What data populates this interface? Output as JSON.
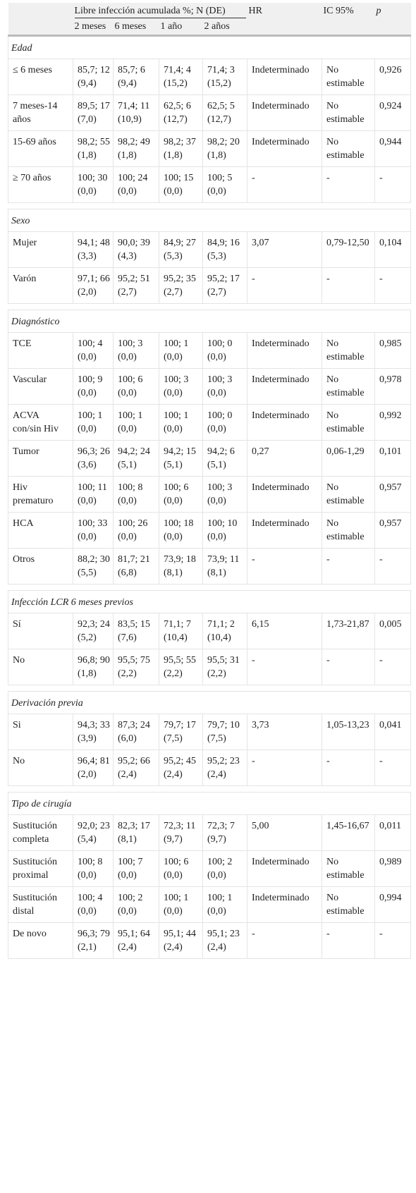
{
  "header": {
    "row1": {
      "group": "Libre infección acumulada %; N (DE)",
      "hr": "HR",
      "ic": "IC 95%",
      "p": "p"
    },
    "row2": [
      "2 meses",
      "6 meses",
      "1 año",
      "2 años"
    ]
  },
  "sections": [
    {
      "title": "Edad",
      "rows": [
        [
          "≤ 6 meses",
          "85,7; 12 (9,4)",
          "85,7; 6 (9,4)",
          "71,4; 4 (15,2)",
          "71,4; 3 (15,2)",
          "Indeterminado",
          "No estimable",
          "0,926"
        ],
        [
          "7 meses-14 años",
          "89,5; 17 (7,0)",
          "71,4; 11 (10,9)",
          "62,5; 6 (12,7)",
          "62,5; 5 (12,7)",
          "Indeterminado",
          "No estimable",
          "0,924"
        ],
        [
          "15-69 años",
          "98,2; 55 (1,8)",
          "98,2; 49 (1,8)",
          "98,2; 37 (1,8)",
          "98,2; 20 (1,8)",
          "Indeterminado",
          "No estimable",
          "0,944"
        ],
        [
          "≥ 70 años",
          "100; 30 (0,0)",
          "100; 24 (0,0)",
          "100; 15 (0,0)",
          "100; 5 (0,0)",
          "-",
          "-",
          "-"
        ]
      ]
    },
    {
      "title": "Sexo",
      "rows": [
        [
          "Mujer",
          "94,1; 48 (3,3)",
          "90,0; 39 (4,3)",
          "84,9; 27 (5,3)",
          "84,9; 16 (5,3)",
          "3,07",
          "0,79-12,50",
          "0,104"
        ],
        [
          "Varón",
          "97,1; 66 (2,0)",
          "95,2; 51 (2,7)",
          "95,2; 35 (2,7)",
          "95,2; 17 (2,7)",
          "-",
          "-",
          "-"
        ]
      ]
    },
    {
      "title": "Diagnóstico",
      "rows": [
        [
          "TCE",
          "100; 4 (0,0)",
          "100; 3 (0,0)",
          "100; 1 (0,0)",
          "100; 0 (0,0)",
          "Indeterminado",
          "No estimable",
          "0,985"
        ],
        [
          "Vascular",
          "100; 9 (0,0)",
          "100; 6 (0,0)",
          "100; 3 (0,0)",
          "100; 3 (0,0)",
          "Indeterminado",
          "No estimable",
          "0,978"
        ],
        [
          "ACVA con/sin Hiv",
          "100; 1 (0,0)",
          "100; 1 (0,0)",
          "100; 1 (0,0)",
          "100; 0 (0,0)",
          "Indeterminado",
          "No estimable",
          "0,992"
        ],
        [
          "Tumor",
          "96,3; 26 (3,6)",
          "94,2; 24 (5,1)",
          "94,2; 15 (5,1)",
          "94,2; 6 (5,1)",
          "0,27",
          "0,06-1,29",
          "0,101"
        ],
        [
          "Hiv prematuro",
          "100; 11 (0,0)",
          "100; 8 (0,0)",
          "100; 6 (0,0)",
          "100; 3 (0,0)",
          "Indeterminado",
          "No estimable",
          "0,957"
        ],
        [
          "HCA",
          "100; 33 (0,0)",
          "100; 26 (0,0)",
          "100; 18 (0,0)",
          "100; 10 (0,0)",
          "Indeterminado",
          "No estimable",
          "0,957"
        ],
        [
          "Otros",
          "88,2; 30 (5,5)",
          "81,7; 21 (6,8)",
          "73,9; 18 (8,1)",
          "73,9; 11 (8,1)",
          "-",
          "-",
          "-"
        ]
      ]
    },
    {
      "title": "Infección LCR 6 meses previos",
      "rows": [
        [
          "Sí",
          "92,3; 24 (5,2)",
          "83,5; 15 (7,6)",
          "71,1; 7 (10,4)",
          "71,1; 2 (10,4)",
          "6,15",
          "1,73-21,87",
          "0,005"
        ],
        [
          "No",
          "96,8; 90 (1,8)",
          "95,5; 75 (2,2)",
          "95,5; 55 (2,2)",
          "95,5; 31 (2,2)",
          "-",
          "-",
          "-"
        ]
      ]
    },
    {
      "title": "Derivación previa",
      "rows": [
        [
          "Si",
          "94,3; 33 (3,9)",
          "87,3; 24 (6,0)",
          "79,7; 17 (7,5)",
          "79,7; 10 (7,5)",
          "3,73",
          "1,05-13,23",
          "0,041"
        ],
        [
          "No",
          "96,4; 81 (2,0)",
          "95,2; 66 (2,4)",
          "95,2; 45 (2,4)",
          "95,2; 23 (2,4)",
          "-",
          "-",
          "-"
        ]
      ]
    },
    {
      "title": "Tipo de cirugía",
      "rows": [
        [
          "Sustitución completa",
          "92,0; 23 (5,4)",
          "82,3; 17 (8,1)",
          "72,3; 11 (9,7)",
          "72,3; 7 (9,7)",
          "5,00",
          "1,45-16,67",
          "0,011"
        ],
        [
          "Sustitución proximal",
          "100; 8 (0,0)",
          "100; 7 (0,0)",
          "100; 6 (0,0)",
          "100; 2 (0,0)",
          "Indeterminado",
          "No estimable",
          "0,989"
        ],
        [
          "Sustitución distal",
          "100; 4 (0,0)",
          "100; 2 (0,0)",
          "100; 1 (0,0)",
          "100; 1 (0,0)",
          "Indeterminado",
          "No estimable",
          "0,994"
        ],
        [
          "De novo",
          "96,3; 79 (2,1)",
          "95,1; 64 (2,4)",
          "95,1; 44 (2,4)",
          "95,1; 23 (2,4)",
          "-",
          "-",
          "-"
        ]
      ]
    }
  ]
}
